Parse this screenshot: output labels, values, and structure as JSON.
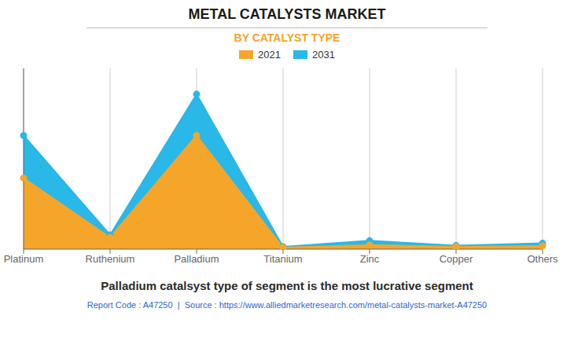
{
  "chart_data": {
    "type": "area",
    "title": "METAL CATALYSTS MARKET",
    "subtitle": "BY CATALYST TYPE",
    "categories": [
      "Platinum",
      "Ruthenium",
      "Palladium",
      "Titanium",
      "Zinc",
      "Copper",
      "Others"
    ],
    "series": [
      {
        "name": "2021",
        "color": "#F5A52A",
        "marker": "o",
        "values": [
          5.5,
          0.9,
          8.8,
          0.12,
          0.32,
          0.18,
          0.25
        ]
      },
      {
        "name": "2031",
        "color": "#29B8E8",
        "marker": "o",
        "values": [
          8.8,
          1.1,
          12.0,
          0.18,
          0.65,
          0.28,
          0.45
        ]
      }
    ],
    "ylim": [
      0,
      14
    ],
    "yticks": [],
    "grid": true,
    "tick_labels": "x",
    "legend": "top",
    "annotations": [
      "Palladium catalsyst type of segment is the most lucrative segment",
      "Report Code : A47250  |  Source : https://www.alliedmarketresearch.com/metal-catalysts-market-A47250"
    ]
  }
}
